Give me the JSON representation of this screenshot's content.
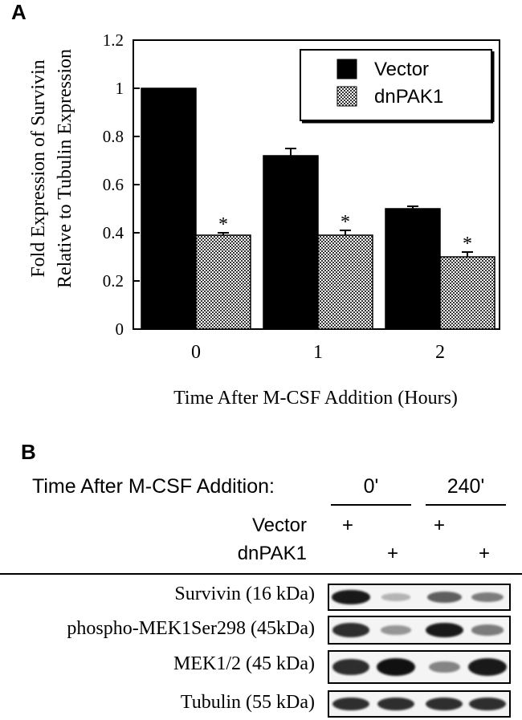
{
  "panel_a_label": "A",
  "panel_b_label": "B",
  "chart_data": {
    "type": "bar",
    "categories": [
      "0",
      "1",
      "2"
    ],
    "series": [
      {
        "name": "Vector",
        "values": [
          1.0,
          0.72,
          0.5
        ],
        "errors": [
          0.0,
          0.03,
          0.01
        ],
        "fill": "solid"
      },
      {
        "name": "dnPAK1",
        "values": [
          0.39,
          0.39,
          0.3
        ],
        "errors": [
          0.01,
          0.02,
          0.02
        ],
        "fill": "checkered"
      }
    ],
    "significance": [
      "*",
      "*",
      "*"
    ],
    "ylabel_line1": "Fold Expression of Survivin",
    "ylabel_line2": "Relative to Tubulin Expression",
    "xlabel": "Time After M-CSF Addition (Hours)",
    "ylim": [
      0,
      1.2
    ],
    "yticks": [
      "0",
      "0.2",
      "0.4",
      "0.6",
      "0.8",
      "1",
      "1.2"
    ],
    "ytick_values": [
      0,
      0.2,
      0.4,
      0.6,
      0.8,
      1.0,
      1.2
    ],
    "legend_position": "top-right",
    "grid": false
  },
  "blot": {
    "time_label": "Time After M-CSF Addition:",
    "time_groups": [
      "0'",
      "240'"
    ],
    "conditions": [
      {
        "label": "Vector",
        "marks": [
          "+",
          "",
          "+",
          ""
        ]
      },
      {
        "label": "dnPAK1",
        "marks": [
          "",
          "+",
          "",
          "+"
        ]
      }
    ],
    "rows": [
      {
        "label": "Survivin (16 kDa)",
        "intensities": [
          0.95,
          0.15,
          0.6,
          0.45
        ]
      },
      {
        "label": "phospho-MEK1Ser298 (45kDa)",
        "intensities": [
          0.85,
          0.3,
          0.95,
          0.45
        ]
      },
      {
        "label": "MEK1/2 (45 kDa)",
        "intensities": [
          0.85,
          1.0,
          0.4,
          0.95
        ]
      },
      {
        "label": "Tubulin (55 kDa)",
        "intensities": [
          0.85,
          0.85,
          0.85,
          0.85
        ]
      }
    ]
  }
}
